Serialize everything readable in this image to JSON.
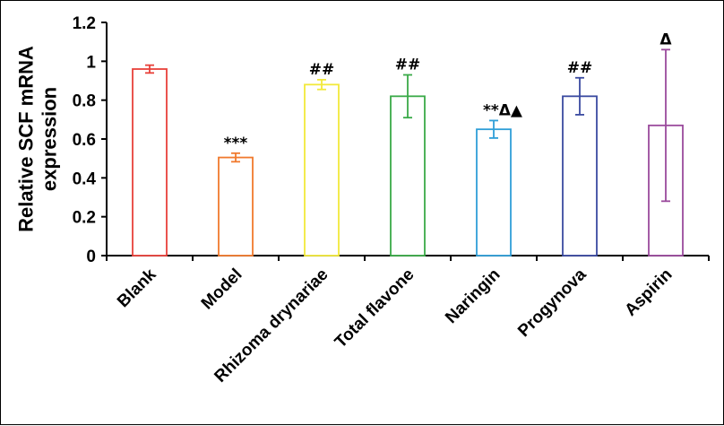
{
  "chart_data": {
    "type": "bar",
    "title": "",
    "xlabel": "",
    "ylabel_lines": [
      "Relative SCF mRNA",
      "expression"
    ],
    "ylim": [
      0,
      1.2
    ],
    "yticks": [
      "0",
      "0.2",
      "0.4",
      "0.6",
      "0.8",
      "1",
      "1.2"
    ],
    "categories": [
      "Blank",
      "Model",
      "Rhizoma drynariae",
      "Total flavone",
      "Naringin",
      "Progynova",
      "Aspirin"
    ],
    "values": [
      0.96,
      0.505,
      0.88,
      0.82,
      0.65,
      0.82,
      0.67
    ],
    "errors": [
      0.02,
      0.022,
      0.025,
      0.11,
      0.045,
      0.095,
      0.39
    ],
    "annotations": [
      "",
      "***",
      "##",
      "##",
      "**Δ▲",
      "##",
      "Δ"
    ],
    "colors": [
      "#e8413a",
      "#f07a2e",
      "#f2e93a",
      "#3aaa48",
      "#2f9fd8",
      "#3a4aa0",
      "#9a4a9c"
    ],
    "grid": false,
    "legend": "none"
  }
}
